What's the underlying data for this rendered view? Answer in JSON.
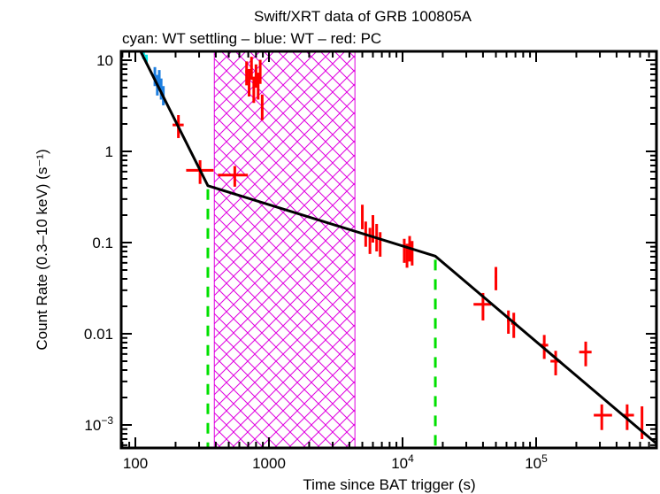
{
  "chart_data": {
    "type": "scatter",
    "title": "Swift/XRT data of GRB 100805A",
    "subtitle": "cyan: WT settling – blue: WT – red: PC",
    "xlabel": "Time since BAT trigger (s)",
    "ylabel": "Count Rate (0.3–10 keV) (s⁻¹)",
    "xscale": "log",
    "yscale": "log",
    "xlim": [
      80,
      800000
    ],
    "ylim": [
      0.00058,
      13
    ],
    "x_ticks": [
      {
        "value": 100,
        "label": "100"
      },
      {
        "value": 1000,
        "label": "1000"
      },
      {
        "value": 10000,
        "label": "10",
        "sup": "4"
      },
      {
        "value": 100000,
        "label": "10",
        "sup": "5"
      }
    ],
    "y_ticks": [
      {
        "value": 10,
        "label": "10"
      },
      {
        "value": 1,
        "label": "1"
      },
      {
        "value": 0.1,
        "label": "0.1"
      },
      {
        "value": 0.01,
        "label": "0.01"
      },
      {
        "value": 0.001,
        "label": "10",
        "sup": "−3"
      }
    ],
    "colors": {
      "wt_settling": "#00e5e5",
      "wt": "#1e7fe0",
      "pc": "#ff0000",
      "model": "#000000",
      "breaks": "#00e000",
      "excluded": "#e000e0"
    },
    "series": [
      {
        "name": "WT settling",
        "color_key": "wt_settling",
        "points": [
          {
            "x": 115,
            "y": 11.5,
            "xerr": [
              3,
              3
            ],
            "yerr": [
              1.2,
              1.2
            ]
          },
          {
            "x": 121,
            "y": 10.3,
            "xerr": [
              3,
              3
            ],
            "yerr": [
              1.2,
              1.2
            ]
          }
        ]
      },
      {
        "name": "WT",
        "color_key": "wt",
        "points": [
          {
            "x": 140,
            "y": 6.8,
            "xerr": [
              3,
              3
            ],
            "yerr": [
              1.6,
              1.6
            ]
          },
          {
            "x": 146,
            "y": 5.5,
            "xerr": [
              3,
              3
            ],
            "yerr": [
              1.4,
              1.4
            ]
          },
          {
            "x": 151,
            "y": 6.3,
            "xerr": [
              3,
              3
            ],
            "yerr": [
              1.5,
              1.5
            ]
          },
          {
            "x": 156,
            "y": 5.0,
            "xerr": [
              3,
              3
            ],
            "yerr": [
              1.3,
              1.3
            ]
          },
          {
            "x": 162,
            "y": 4.2,
            "xerr": [
              3,
              3
            ],
            "yerr": [
              1.0,
              1.0
            ]
          }
        ]
      },
      {
        "name": "PC",
        "color_key": "pc",
        "points": [
          {
            "x": 210,
            "y": 1.95,
            "xerr": [
              20,
              20
            ],
            "yerr": [
              0.55,
              0.55
            ]
          },
          {
            "x": 305,
            "y": 0.62,
            "xerr": [
              65,
              80
            ],
            "yerr": [
              0.18,
              0.18
            ]
          },
          {
            "x": 555,
            "y": 0.55,
            "xerr": [
              140,
              140
            ],
            "yerr": [
              0.14,
              0.14
            ]
          },
          {
            "x": 680,
            "y": 7.5,
            "xerr": [
              15,
              15
            ],
            "yerr": [
              2.2,
              2.2
            ]
          },
          {
            "x": 710,
            "y": 6.0,
            "xerr": [
              15,
              15
            ],
            "yerr": [
              2.0,
              2.0
            ]
          },
          {
            "x": 740,
            "y": 8.5,
            "xerr": [
              15,
              15
            ],
            "yerr": [
              2.4,
              2.4
            ]
          },
          {
            "x": 770,
            "y": 5.0,
            "xerr": [
              15,
              15
            ],
            "yerr": [
              1.6,
              1.6
            ]
          },
          {
            "x": 800,
            "y": 7.0,
            "xerr": [
              15,
              15
            ],
            "yerr": [
              2.0,
              2.0
            ]
          },
          {
            "x": 830,
            "y": 5.5,
            "xerr": [
              15,
              15
            ],
            "yerr": [
              1.8,
              1.8
            ]
          },
          {
            "x": 860,
            "y": 7.8,
            "xerr": [
              15,
              15
            ],
            "yerr": [
              2.3,
              2.3
            ]
          },
          {
            "x": 890,
            "y": 3.2,
            "xerr": [
              15,
              15
            ],
            "yerr": [
              1.0,
              1.0
            ]
          },
          {
            "x": 5000,
            "y": 0.2,
            "xerr": [
              60,
              60
            ],
            "yerr": [
              0.06,
              0.06
            ]
          },
          {
            "x": 5300,
            "y": 0.13,
            "xerr": [
              60,
              60
            ],
            "yerr": [
              0.04,
              0.04
            ]
          },
          {
            "x": 5700,
            "y": 0.11,
            "xerr": [
              60,
              60
            ],
            "yerr": [
              0.035,
              0.035
            ]
          },
          {
            "x": 6000,
            "y": 0.15,
            "xerr": [
              60,
              60
            ],
            "yerr": [
              0.05,
              0.05
            ]
          },
          {
            "x": 6400,
            "y": 0.12,
            "xerr": [
              60,
              60
            ],
            "yerr": [
              0.04,
              0.04
            ]
          },
          {
            "x": 6800,
            "y": 0.1,
            "xerr": [
              60,
              60
            ],
            "yerr": [
              0.03,
              0.03
            ]
          },
          {
            "x": 10300,
            "y": 0.085,
            "xerr": [
              150,
              150
            ],
            "yerr": [
              0.025,
              0.025
            ]
          },
          {
            "x": 10800,
            "y": 0.075,
            "xerr": [
              150,
              150
            ],
            "yerr": [
              0.022,
              0.022
            ]
          },
          {
            "x": 11300,
            "y": 0.09,
            "xerr": [
              150,
              150
            ],
            "yerr": [
              0.028,
              0.028
            ]
          },
          {
            "x": 11800,
            "y": 0.08,
            "xerr": [
              150,
              150
            ],
            "yerr": [
              0.024,
              0.024
            ]
          },
          {
            "x": 40000,
            "y": 0.021,
            "xerr": [
              6000,
              6000
            ],
            "yerr": [
              0.007,
              0.007
            ]
          },
          {
            "x": 50000,
            "y": 0.042,
            "xerr": [
              1000,
              1000
            ],
            "yerr": [
              0.012,
              0.012
            ]
          },
          {
            "x": 62000,
            "y": 0.014,
            "xerr": [
              1500,
              1500
            ],
            "yerr": [
              0.004,
              0.004
            ]
          },
          {
            "x": 68000,
            "y": 0.013,
            "xerr": [
              3000,
              3000
            ],
            "yerr": [
              0.004,
              0.004
            ]
          },
          {
            "x": 115000,
            "y": 0.0075,
            "xerr": [
              8000,
              8000
            ],
            "yerr": [
              0.0022,
              0.0022
            ]
          },
          {
            "x": 140000,
            "y": 0.005,
            "xerr": [
              12000,
              12000
            ],
            "yerr": [
              0.0015,
              0.0015
            ]
          },
          {
            "x": 235000,
            "y": 0.0063,
            "xerr": [
              25000,
              25000
            ],
            "yerr": [
              0.0019,
              0.0019
            ]
          },
          {
            "x": 310000,
            "y": 0.00128,
            "xerr": [
              40000,
              60000
            ],
            "yerr": [
              0.0004,
              0.0004
            ]
          },
          {
            "x": 480000,
            "y": 0.00128,
            "xerr": [
              40000,
              60000
            ],
            "yerr": [
              0.0004,
              0.0004
            ]
          },
          {
            "x": 620000,
            "y": 0.0012,
            "xerr": [
              8000,
              8000
            ],
            "yerr": [
              0.0005,
              0.0004
            ]
          }
        ]
      }
    ],
    "model": {
      "name": "broken power-law fit",
      "points": [
        {
          "x": 108,
          "y": 13
        },
        {
          "x": 349,
          "y": 0.42
        },
        {
          "x": 17600,
          "y": 0.071
        },
        {
          "x": 800000,
          "y": 0.00062
        }
      ]
    },
    "break_times": [
      349,
      17600
    ],
    "excluded_interval": [
      390,
      4400
    ]
  }
}
